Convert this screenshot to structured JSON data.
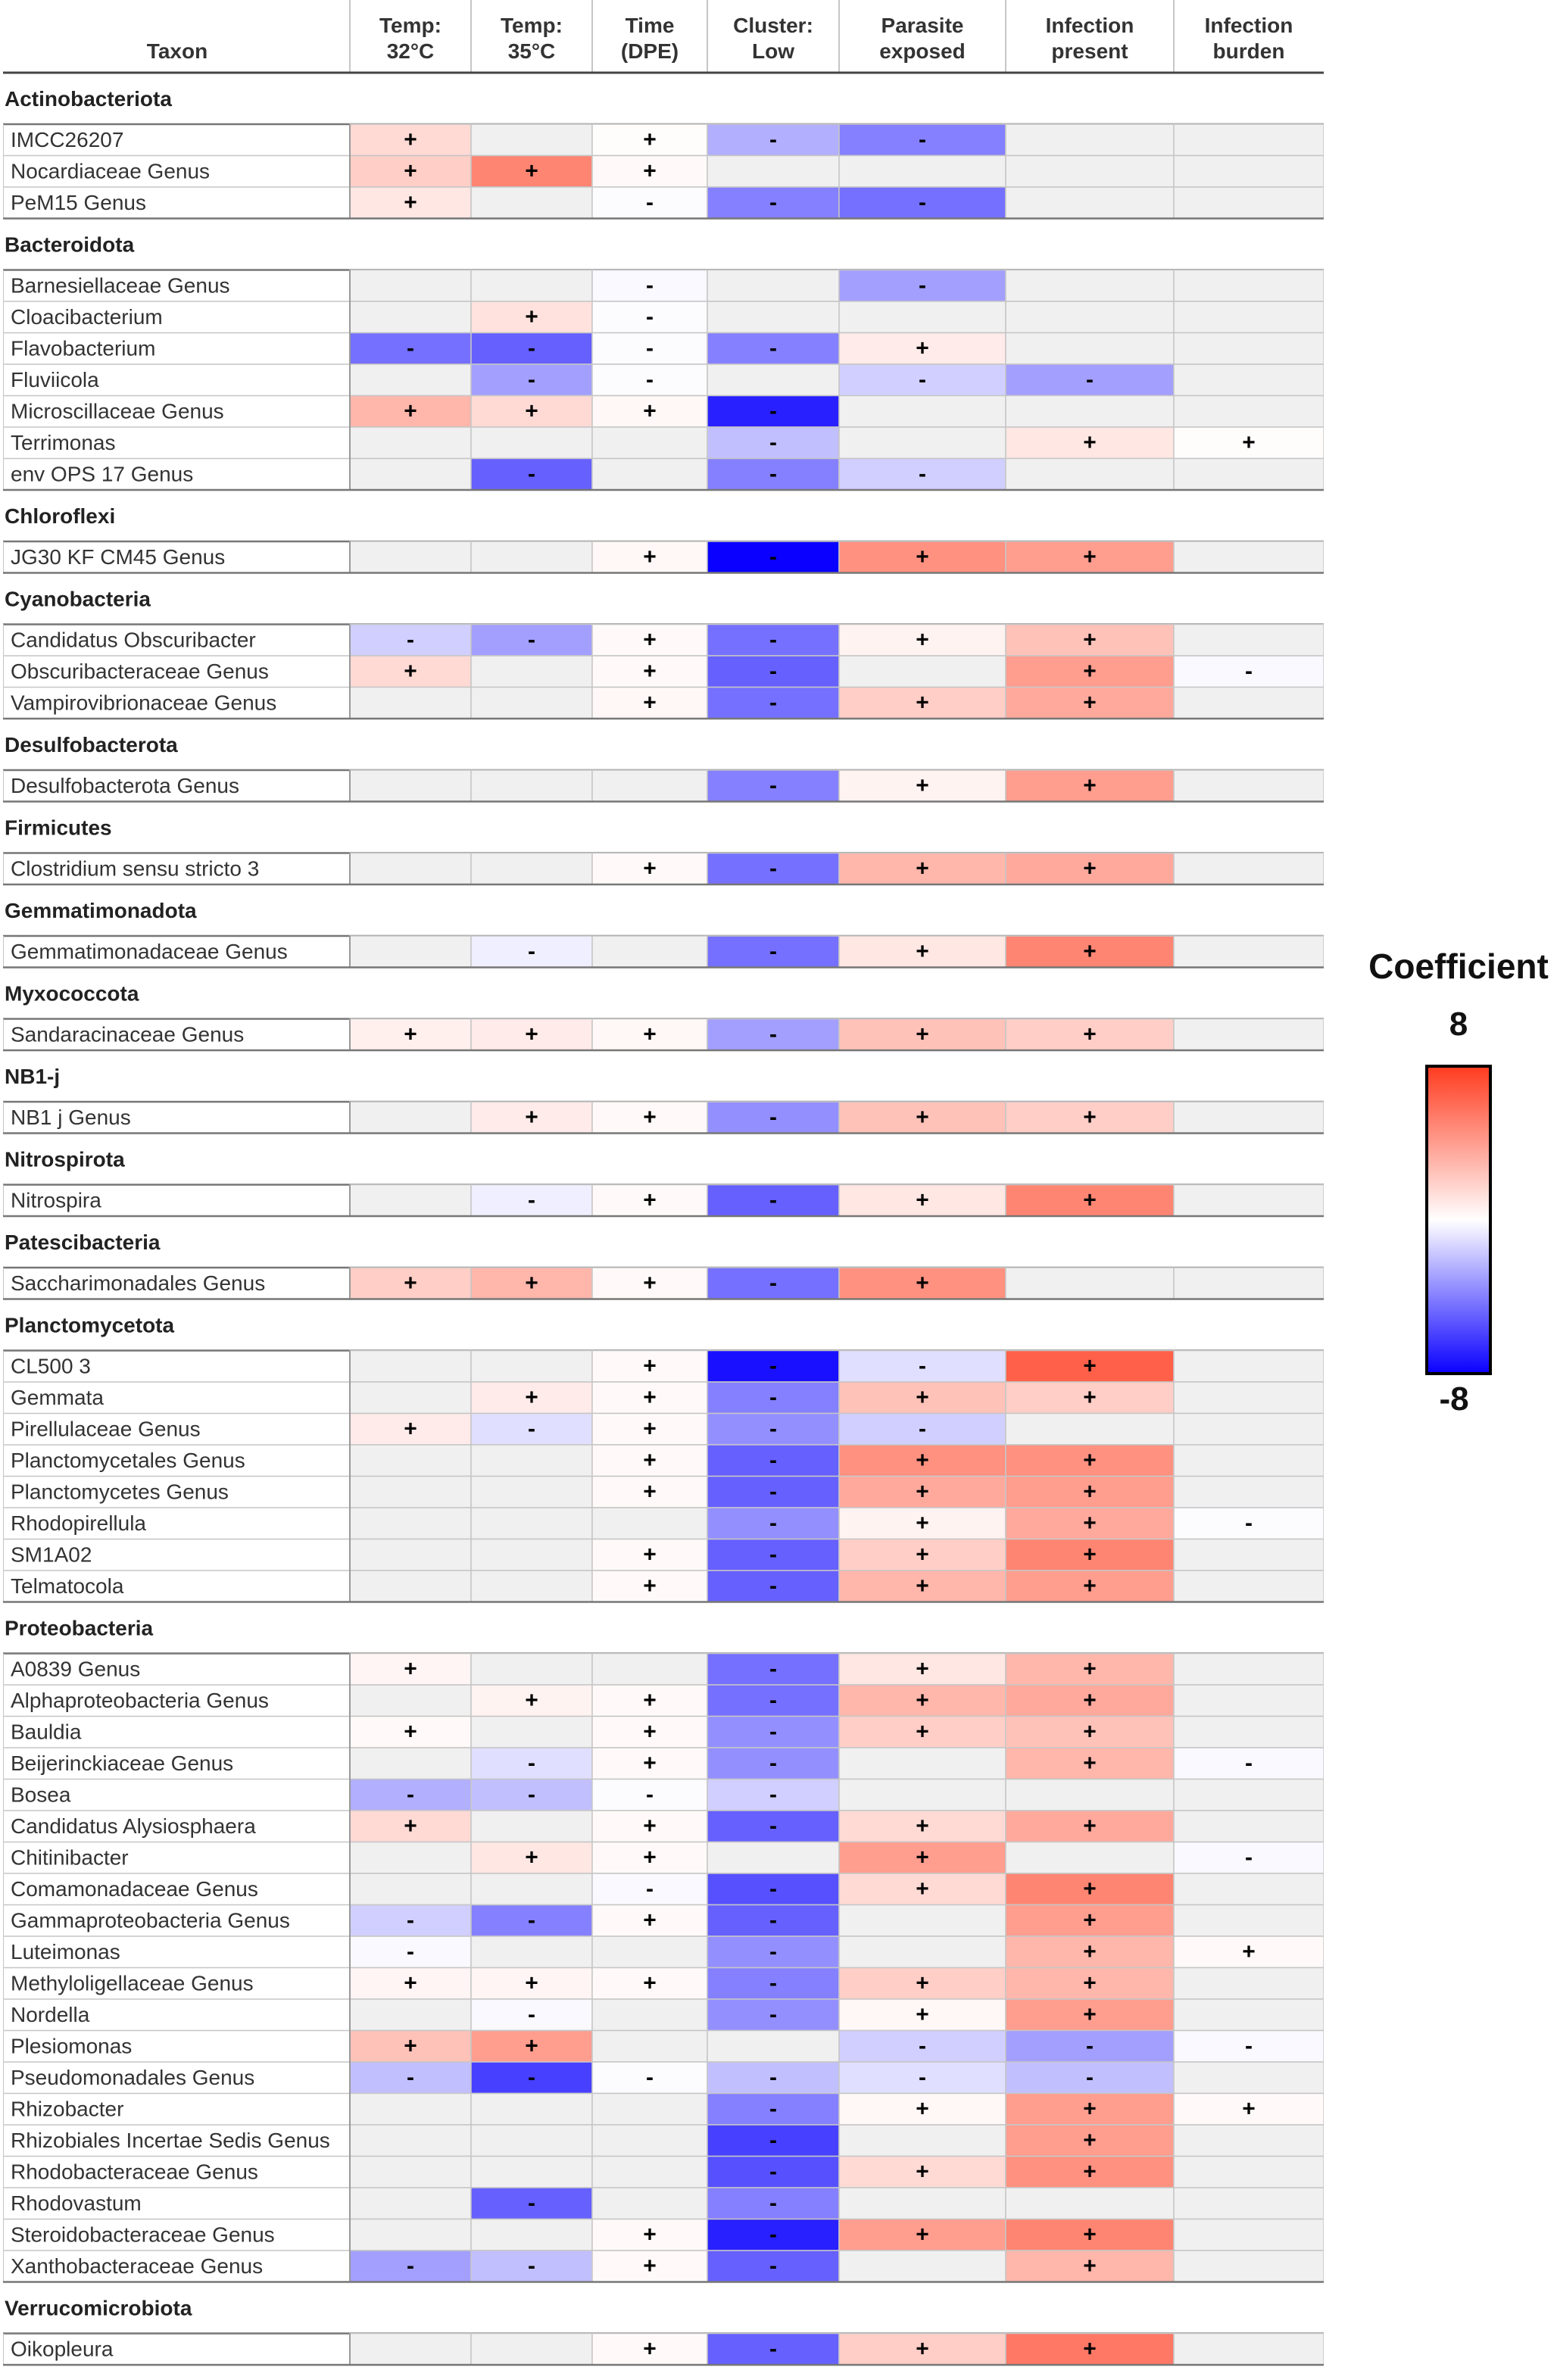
{
  "chart_data": {
    "type": "heatmap",
    "title": "",
    "value_range": [
      -8,
      8
    ],
    "colors": {
      "positive": "#ff3b1f",
      "zero": "#ffffff",
      "negative": "#0a00ff",
      "empty": "#f0f0f0",
      "grid": "#c6c6c6"
    },
    "columns": [
      {
        "id": "t32",
        "line1": "Temp:",
        "line2": "32°C"
      },
      {
        "id": "t35",
        "line1": "Temp:",
        "line2": "35°C"
      },
      {
        "id": "time",
        "line1": "Time",
        "line2": "(DPE)"
      },
      {
        "id": "cluster",
        "line1": "Cluster:",
        "line2": "Low"
      },
      {
        "id": "parasite",
        "line1": "Parasite",
        "line2": "exposed"
      },
      {
        "id": "infection",
        "line1": "Infection",
        "line2": "present"
      },
      {
        "id": "burden",
        "line1": "Infection",
        "line2": "burden"
      }
    ],
    "taxon_header": "Taxon",
    "groups": [
      {
        "phylum": "Actinobacteriota",
        "rows": [
          {
            "taxon": "IMCC26207",
            "values": [
              1.5,
              null,
              0.1,
              -2.5,
              -4,
              null,
              null
            ]
          },
          {
            "taxon": "Nocardiaceae Genus",
            "values": [
              2,
              5,
              0.2,
              null,
              null,
              null,
              null
            ]
          },
          {
            "taxon": "PeM15 Genus",
            "values": [
              1,
              null,
              -0.1,
              -4,
              -4.5,
              null,
              null
            ]
          }
        ]
      },
      {
        "phylum": "Bacteroidota",
        "rows": [
          {
            "taxon": "Barnesiellaceae Genus",
            "values": [
              null,
              null,
              -0.2,
              null,
              -3,
              null,
              null
            ]
          },
          {
            "taxon": "Cloacibacterium",
            "values": [
              null,
              1.2,
              -0.1,
              null,
              null,
              null,
              null
            ]
          },
          {
            "taxon": "Flavobacterium",
            "values": [
              -4.5,
              -5,
              -0.1,
              -4,
              0.8,
              null,
              null
            ]
          },
          {
            "taxon": "Fluviicola",
            "values": [
              null,
              -3,
              -0.1,
              null,
              -1.5,
              -3,
              null
            ]
          },
          {
            "taxon": "Microscillaceae Genus",
            "values": [
              3,
              1.5,
              0.3,
              -7,
              null,
              null,
              null
            ]
          },
          {
            "taxon": "Terrimonas",
            "values": [
              null,
              null,
              null,
              -2,
              null,
              1,
              0.1
            ]
          },
          {
            "taxon": "env OPS 17 Genus",
            "values": [
              null,
              -5,
              null,
              -4,
              -1.5,
              null,
              null
            ]
          }
        ]
      },
      {
        "phylum": "Chloroflexi",
        "rows": [
          {
            "taxon": "JG30 KF CM45 Genus",
            "values": [
              null,
              null,
              0.3,
              -8,
              4.5,
              4,
              null
            ]
          }
        ]
      },
      {
        "phylum": "Cyanobacteria",
        "rows": [
          {
            "taxon": "Candidatus Obscuribacter",
            "values": [
              -1.5,
              -3,
              0.2,
              -4.5,
              0.5,
              2.5,
              null
            ]
          },
          {
            "taxon": "Obscuribacteraceae Genus",
            "values": [
              1.5,
              null,
              0.2,
              -5,
              null,
              4,
              -0.2
            ]
          },
          {
            "taxon": "Vampirovibrionaceae Genus",
            "values": [
              null,
              null,
              0.3,
              -4.5,
              2,
              3.5,
              null
            ]
          }
        ]
      },
      {
        "phylum": "Desulfobacterota",
        "rows": [
          {
            "taxon": "Desulfobacterota Genus",
            "values": [
              null,
              null,
              null,
              -4,
              0.5,
              4,
              null
            ]
          }
        ]
      },
      {
        "phylum": "Firmicutes",
        "rows": [
          {
            "taxon": "Clostridium sensu stricto 3",
            "values": [
              null,
              null,
              0.2,
              -4.5,
              3,
              3.5,
              null
            ]
          }
        ]
      },
      {
        "phylum": "Gemmatimonadota",
        "rows": [
          {
            "taxon": "Gemmatimonadaceae Genus",
            "values": [
              null,
              -0.5,
              null,
              -4.5,
              1,
              5,
              null
            ]
          }
        ]
      },
      {
        "phylum": "Myxococcota",
        "rows": [
          {
            "taxon": "Sandaracinaceae Genus",
            "values": [
              0.6,
              0.8,
              0.3,
              -3,
              2.5,
              2,
              null
            ]
          }
        ]
      },
      {
        "phylum": "NB1-j",
        "rows": [
          {
            "taxon": "NB1 j Genus",
            "values": [
              null,
              0.8,
              0.2,
              -3.5,
              2.5,
              2,
              null
            ]
          }
        ]
      },
      {
        "phylum": "Nitrospirota",
        "rows": [
          {
            "taxon": "Nitrospira",
            "values": [
              null,
              -0.5,
              0.2,
              -5,
              1,
              5,
              null
            ]
          }
        ]
      },
      {
        "phylum": "Patescibacteria",
        "rows": [
          {
            "taxon": "Saccharimonadales Genus",
            "values": [
              2,
              3,
              0.2,
              -4.5,
              4.5,
              null,
              null
            ]
          }
        ]
      },
      {
        "phylum": "Planctomycetota",
        "rows": [
          {
            "taxon": "CL500 3",
            "values": [
              null,
              null,
              0.2,
              -7.5,
              -1,
              6.5,
              null
            ]
          },
          {
            "taxon": "Gemmata",
            "values": [
              null,
              0.8,
              0.2,
              -4,
              2.5,
              2,
              null
            ]
          },
          {
            "taxon": "Pirellulaceae Genus",
            "values": [
              0.8,
              -1,
              0.2,
              -3.5,
              -1.5,
              null,
              null
            ]
          },
          {
            "taxon": "Planctomycetales Genus",
            "values": [
              null,
              null,
              0.2,
              -5,
              4.5,
              4.5,
              null
            ]
          },
          {
            "taxon": "Planctomycetes Genus",
            "values": [
              null,
              null,
              0.2,
              -5,
              3.5,
              4,
              null
            ]
          },
          {
            "taxon": "Rhodopirellula",
            "values": [
              null,
              null,
              null,
              -3.5,
              0.5,
              3.5,
              -0.1
            ]
          },
          {
            "taxon": "SM1A02",
            "values": [
              null,
              null,
              0.2,
              -5,
              2,
              5,
              null
            ]
          },
          {
            "taxon": "Telmatocola",
            "values": [
              null,
              null,
              0.2,
              -5,
              3,
              4,
              null
            ]
          }
        ]
      },
      {
        "phylum": "Proteobacteria",
        "rows": [
          {
            "taxon": "A0839 Genus",
            "values": [
              0.4,
              null,
              null,
              -4.5,
              1,
              3,
              null
            ]
          },
          {
            "taxon": "Alphaproteobacteria Genus",
            "values": [
              null,
              0.5,
              0.2,
              -4.5,
              3,
              3.5,
              null
            ]
          },
          {
            "taxon": "Bauldia",
            "values": [
              0.2,
              null,
              0.2,
              -3.5,
              2,
              2.5,
              null
            ]
          },
          {
            "taxon": "Beijerinckiaceae Genus",
            "values": [
              null,
              -1,
              0.2,
              -3.5,
              null,
              3,
              -0.2
            ]
          },
          {
            "taxon": "Bosea",
            "values": [
              -2.5,
              -2,
              -0.1,
              -1.5,
              null,
              null,
              null
            ]
          },
          {
            "taxon": "Candidatus Alysiosphaera",
            "values": [
              1.5,
              null,
              0.2,
              -5,
              1.5,
              3.5,
              null
            ]
          },
          {
            "taxon": "Chitinibacter",
            "values": [
              null,
              1,
              0.2,
              null,
              4,
              null,
              -0.2
            ]
          },
          {
            "taxon": "Comamonadaceae Genus",
            "values": [
              null,
              null,
              -0.2,
              -5.5,
              1.5,
              5,
              null
            ]
          },
          {
            "taxon": "Gammaproteobacteria Genus",
            "values": [
              -1.5,
              -4,
              0.2,
              -5,
              null,
              4,
              null
            ]
          },
          {
            "taxon": "Luteimonas",
            "values": [
              -0.2,
              null,
              null,
              -3.5,
              null,
              3,
              0.2
            ]
          },
          {
            "taxon": "Methyloligellaceae Genus",
            "values": [
              0.4,
              0.4,
              0.2,
              -4,
              2,
              3,
              null
            ]
          },
          {
            "taxon": "Nordella",
            "values": [
              null,
              -0.2,
              null,
              -3.5,
              0.3,
              4,
              null
            ]
          },
          {
            "taxon": "Plesiomonas",
            "values": [
              2.5,
              4,
              null,
              null,
              -1.5,
              -3,
              -0.2
            ]
          },
          {
            "taxon": "Pseudomonadales Genus",
            "values": [
              -2,
              -6,
              -0.1,
              -2,
              -1,
              -2,
              null
            ]
          },
          {
            "taxon": "Rhizobacter",
            "values": [
              null,
              null,
              null,
              -4,
              0.3,
              4,
              0.2
            ]
          },
          {
            "taxon": "Rhizobiales Incertae Sedis Genus",
            "values": [
              null,
              null,
              null,
              -6,
              null,
              4,
              null
            ]
          },
          {
            "taxon": "Rhodobacteraceae Genus",
            "values": [
              null,
              null,
              null,
              -5.5,
              1.5,
              4.5,
              null
            ]
          },
          {
            "taxon": "Rhodovastum",
            "values": [
              null,
              -5,
              null,
              -4,
              null,
              null,
              null
            ]
          },
          {
            "taxon": "Steroidobacteraceae Genus",
            "values": [
              null,
              null,
              0.2,
              -7,
              4,
              5,
              null
            ]
          },
          {
            "taxon": "Xanthobacteraceae Genus",
            "values": [
              -3,
              -2,
              0.2,
              -5,
              null,
              3,
              null
            ]
          }
        ]
      },
      {
        "phylum": "Verrucomicrobiota",
        "rows": [
          {
            "taxon": "Oikopleura",
            "values": [
              null,
              null,
              0.2,
              -5,
              2,
              5.5,
              null
            ]
          }
        ]
      }
    ]
  },
  "legend": {
    "title": "Coefficient",
    "max_label": "8",
    "min_label": "-8"
  }
}
